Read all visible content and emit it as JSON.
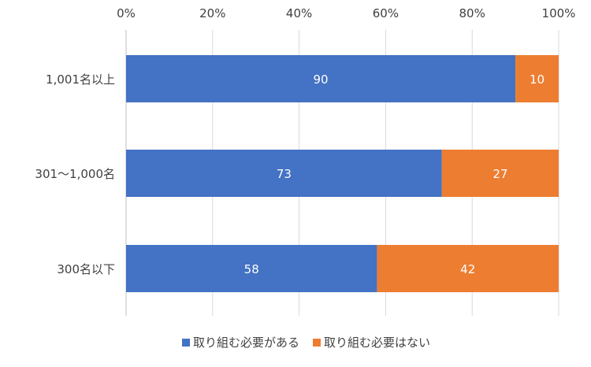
{
  "chart_data": {
    "type": "bar",
    "orientation": "horizontal",
    "stacked": "percent",
    "categories": [
      "1,001名以上",
      "301～1,000名",
      "300名以下"
    ],
    "series": [
      {
        "name": "取り組む必要がある",
        "values": [
          90,
          73,
          58
        ],
        "color": "#4472C4"
      },
      {
        "name": "取り組む必要はない",
        "values": [
          10,
          27,
          42
        ],
        "color": "#ED7D31"
      }
    ],
    "xaxis": {
      "ticks": [
        "0%",
        "20%",
        "40%",
        "60%",
        "80%",
        "100%"
      ],
      "tick_values": [
        0,
        20,
        40,
        60,
        80,
        100
      ],
      "position": "top"
    },
    "xlim": [
      0,
      100
    ],
    "grid": true,
    "legend": {
      "position": "bottom"
    },
    "data_labels": true
  }
}
